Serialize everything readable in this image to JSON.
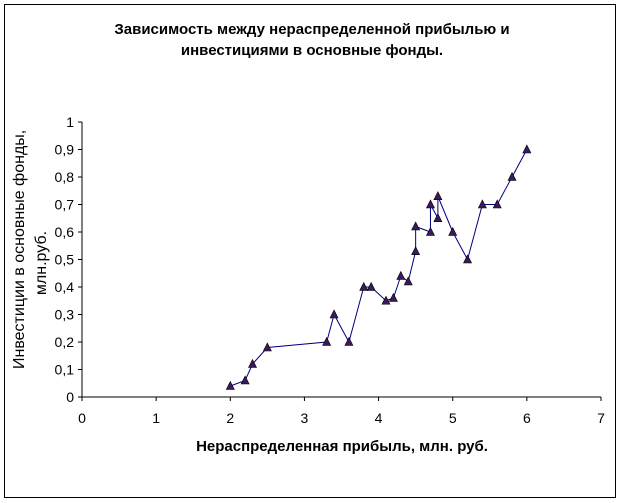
{
  "chart_data": {
    "type": "line",
    "title_line1": "Зависимость между нераспределенной прибылью и",
    "title_line2": "инвестициями в основные фонды.",
    "xlabel": "Нераспределенная прибыль, млн. руб.",
    "ylabel_line1": "Инвестиции в основные фонды,",
    "ylabel_line2": "млн.руб.",
    "xlim": [
      0,
      7
    ],
    "ylim": [
      0,
      1
    ],
    "x_ticks": [
      0,
      1,
      2,
      3,
      4,
      5,
      6,
      7
    ],
    "y_ticks": [
      "0",
      "0,1",
      "0,2",
      "0,3",
      "0,4",
      "0,5",
      "0,6",
      "0,7",
      "0,8",
      "0,9",
      "1"
    ],
    "grid": false,
    "marker": "triangle",
    "colors": {
      "line": "#000080",
      "marker": "#3a1a5a"
    },
    "series": [
      {
        "points": [
          [
            2.0,
            0.04
          ],
          [
            2.2,
            0.06
          ],
          [
            2.3,
            0.12
          ],
          [
            2.5,
            0.18
          ],
          [
            3.3,
            0.2
          ],
          [
            3.4,
            0.3
          ],
          [
            3.6,
            0.2
          ],
          [
            3.8,
            0.4
          ],
          [
            3.9,
            0.4
          ],
          [
            4.1,
            0.35
          ],
          [
            4.2,
            0.36
          ],
          [
            4.3,
            0.44
          ],
          [
            4.4,
            0.42
          ],
          [
            4.5,
            0.53
          ],
          [
            4.5,
            0.62
          ],
          [
            4.7,
            0.6
          ],
          [
            4.7,
            0.7
          ],
          [
            4.8,
            0.65
          ],
          [
            4.8,
            0.73
          ],
          [
            5.0,
            0.6
          ],
          [
            5.2,
            0.5
          ],
          [
            5.4,
            0.7
          ],
          [
            5.6,
            0.7
          ],
          [
            5.8,
            0.8
          ],
          [
            6.0,
            0.9
          ]
        ]
      }
    ]
  }
}
